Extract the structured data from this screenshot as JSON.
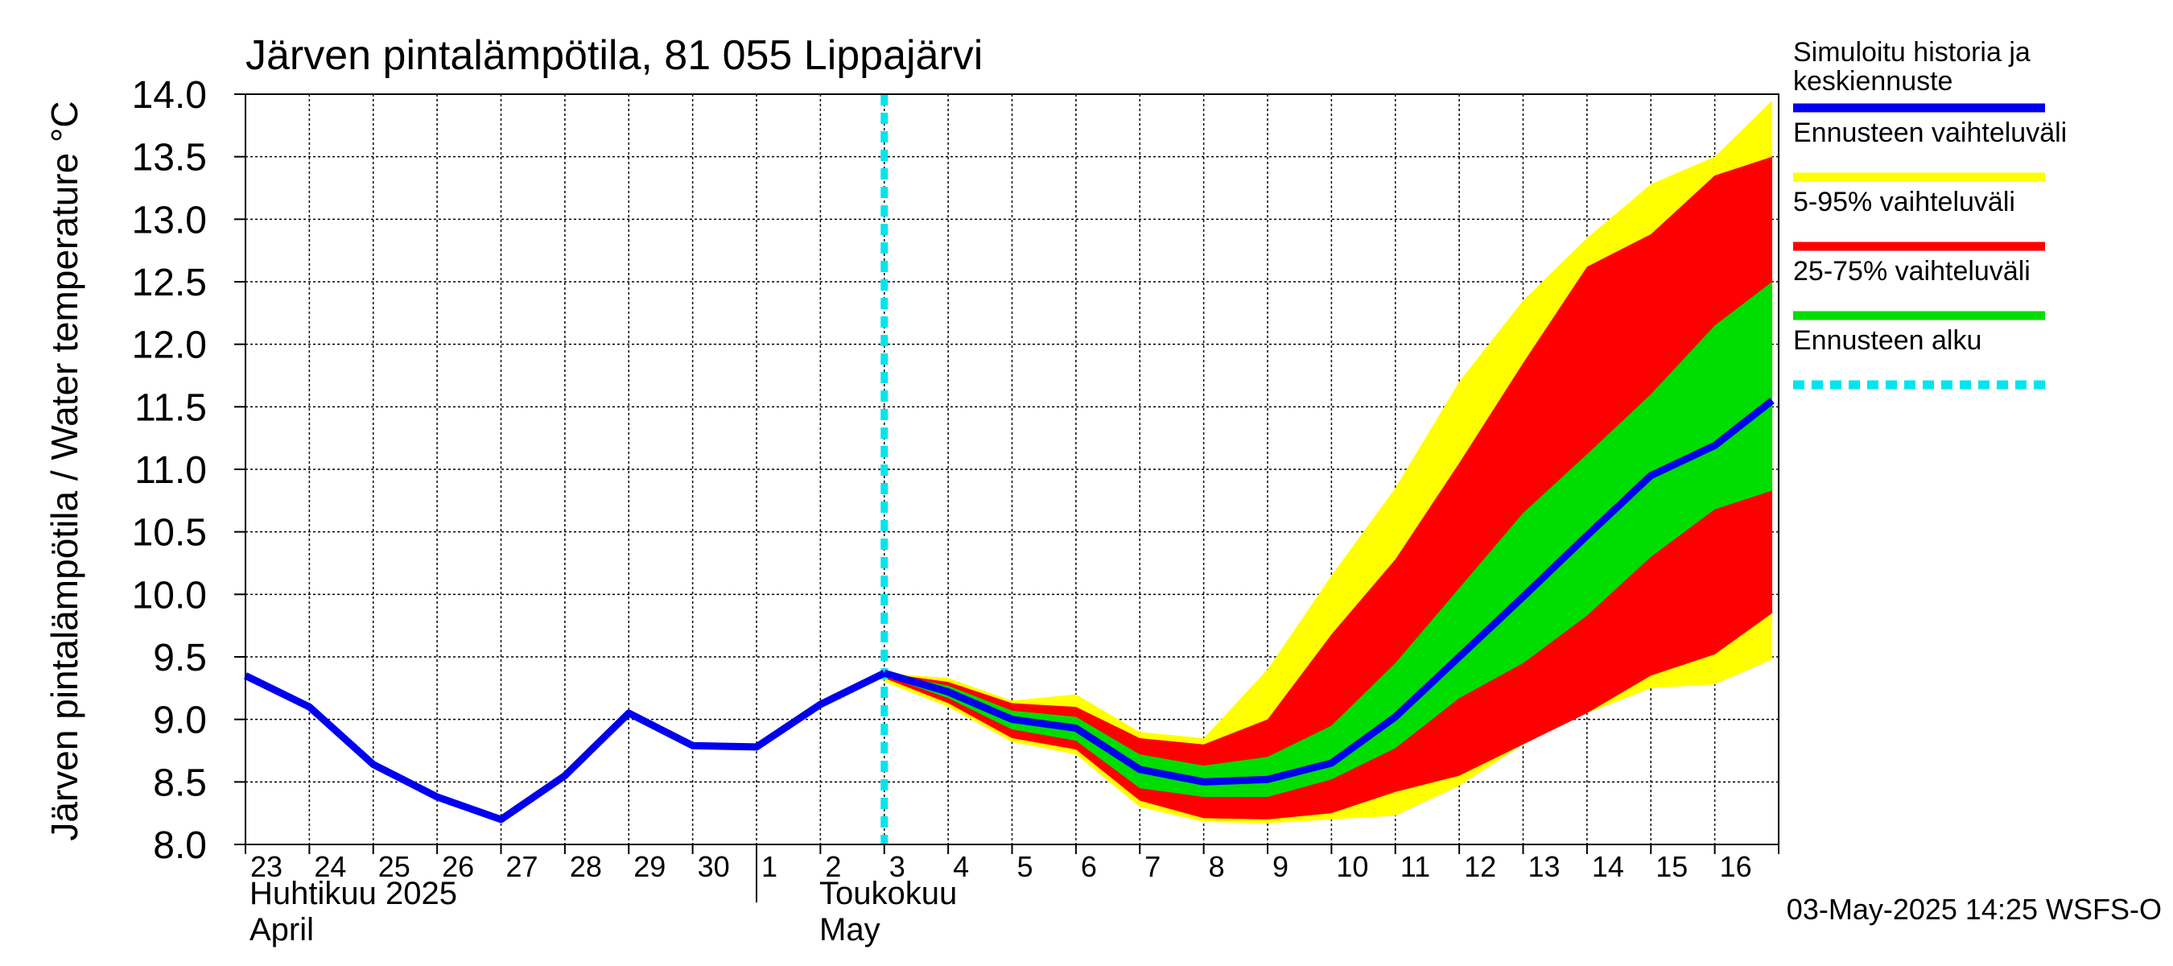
{
  "chart_data": {
    "type": "area",
    "title": "Järven pintalämpötila, 81 055 Lippajärvi",
    "ylabel": "Järven pintalämpötila / Water temperature °C",
    "ylim": [
      8.0,
      14.0
    ],
    "yticks": [
      "8.0",
      "8.5",
      "9.0",
      "9.5",
      "10.0",
      "10.5",
      "11.0",
      "11.5",
      "12.0",
      "12.5",
      "13.0",
      "13.5",
      "14.0"
    ],
    "x_day_labels": [
      "23",
      "24",
      "25",
      "26",
      "27",
      "28",
      "29",
      "30",
      "1",
      "2",
      "3",
      "4",
      "5",
      "6",
      "7",
      "8",
      "9",
      "10",
      "11",
      "12",
      "13",
      "14",
      "15",
      "16"
    ],
    "month_labels": {
      "april_fi": "Huhtikuu  2025",
      "april_en": "April",
      "may_fi": "Toukokuu",
      "may_en": "May"
    },
    "forecast_start_day": 10,
    "history": {
      "name": "Simuloitu historia ja keskiennuste",
      "days": [
        0,
        1,
        2,
        3,
        4,
        5,
        6,
        7,
        8,
        9,
        10
      ],
      "values": [
        9.35,
        9.1,
        8.64,
        8.38,
        8.2,
        8.55,
        9.05,
        8.79,
        8.78,
        9.12,
        9.37
      ]
    },
    "median_forecast": {
      "days": [
        10,
        11,
        12,
        13,
        14,
        15,
        16,
        17,
        18,
        19,
        20,
        21,
        22,
        23,
        23.9
      ],
      "values": [
        9.37,
        9.22,
        9.0,
        8.93,
        8.6,
        8.5,
        8.52,
        8.65,
        9.02,
        9.5,
        9.98,
        10.47,
        10.95,
        11.19,
        11.55
      ]
    },
    "bands": [
      {
        "name": "Ennusteen vaihteluväli",
        "color": "#ffff00",
        "days": [
          10,
          11,
          12,
          13,
          14,
          15,
          16,
          17,
          18,
          19,
          20,
          21,
          22,
          23,
          23.9
        ],
        "upper": [
          9.37,
          9.33,
          9.15,
          9.2,
          8.9,
          8.85,
          9.4,
          10.15,
          10.85,
          11.7,
          12.35,
          12.85,
          13.28,
          13.5,
          13.95
        ],
        "lower": [
          9.3,
          9.1,
          8.82,
          8.72,
          8.3,
          8.18,
          8.17,
          8.2,
          8.23,
          8.47,
          8.8,
          9.05,
          9.25,
          9.28,
          9.48
        ]
      },
      {
        "name": "5-95% vaihteluväli",
        "color": "#ff0000",
        "days": [
          10,
          11,
          12,
          13,
          14,
          15,
          16,
          17,
          18,
          19,
          20,
          21,
          22,
          23,
          23.9
        ],
        "upper": [
          9.37,
          9.3,
          9.13,
          9.1,
          8.85,
          8.8,
          9.0,
          9.68,
          10.28,
          11.05,
          11.85,
          12.62,
          12.88,
          13.35,
          13.5
        ],
        "lower": [
          9.33,
          9.13,
          8.85,
          8.76,
          8.35,
          8.21,
          8.2,
          8.25,
          8.42,
          8.55,
          8.8,
          9.05,
          9.35,
          9.52,
          9.85
        ]
      },
      {
        "name": "25-75% vaihteluväli",
        "color": "#00dd00",
        "days": [
          10,
          11,
          12,
          13,
          14,
          15,
          16,
          17,
          18,
          19,
          20,
          21,
          22,
          23,
          23.9
        ],
        "upper": [
          9.37,
          9.27,
          9.07,
          9.02,
          8.72,
          8.63,
          8.7,
          8.95,
          9.45,
          10.05,
          10.65,
          11.12,
          11.6,
          12.15,
          12.5
        ],
        "lower": [
          9.35,
          9.17,
          8.92,
          8.83,
          8.45,
          8.38,
          8.38,
          8.52,
          8.77,
          9.17,
          9.45,
          9.83,
          10.3,
          10.68,
          10.83
        ]
      }
    ],
    "legend": [
      {
        "label": "Simuloitu historia ja keskiennuste",
        "color": "#0000ee",
        "style": "solid"
      },
      {
        "label": "Ennusteen vaihteluväli",
        "color": "#ffff00",
        "style": "solid"
      },
      {
        "label": "5-95% vaihteluväli",
        "color": "#ff0000",
        "style": "solid"
      },
      {
        "label": "25-75% vaihteluväli",
        "color": "#00dd00",
        "style": "solid"
      },
      {
        "label": "Ennusteen alku",
        "color": "#00e5ee",
        "style": "dashed"
      }
    ],
    "legend_position": "right",
    "grid": true,
    "timestamp": "03-May-2025 14:25 WSFS-O"
  }
}
